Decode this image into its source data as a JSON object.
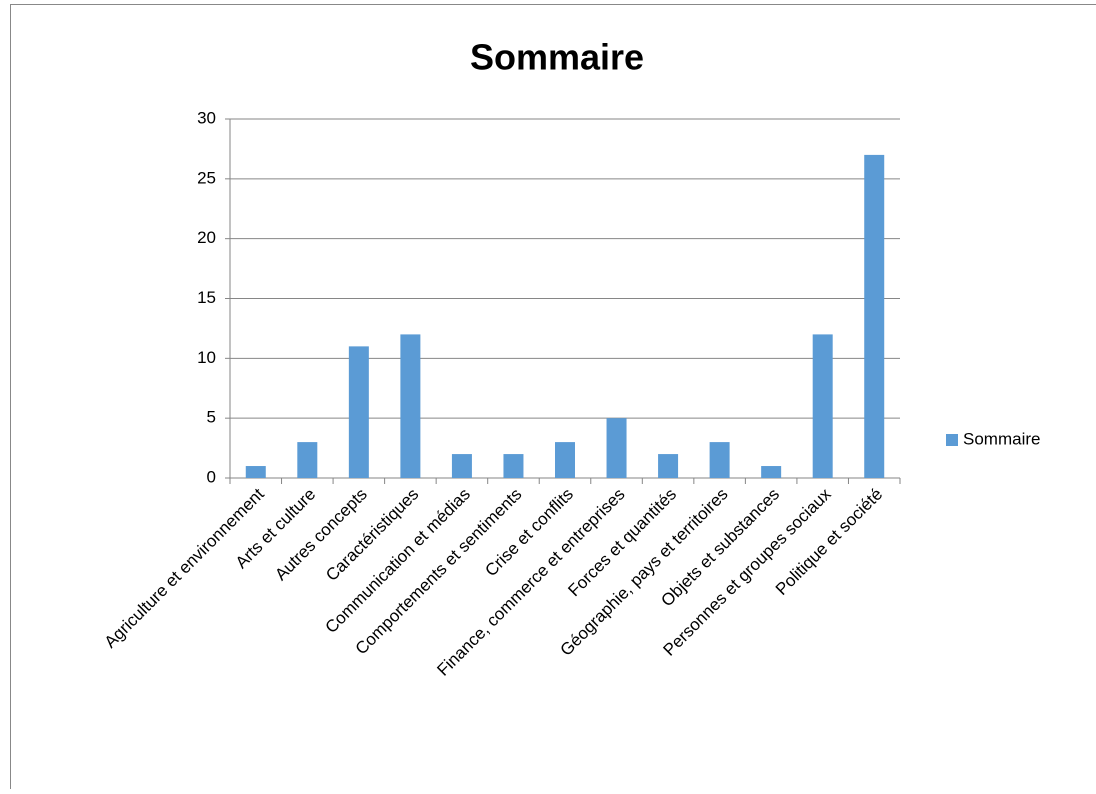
{
  "chart_data": {
    "type": "bar",
    "title": "Sommaire",
    "categories": [
      "Agriculture et environnement",
      "Arts et culture",
      "Autres concepts",
      "Caractéristiques",
      "Communication et médias",
      "Comportements et sentiments",
      "Crise et conflits",
      "Finance, commerce et entreprises",
      "Forces et quantités",
      "Géographie, pays et territoires",
      "Objets et substances",
      "Personnes et groupes sociaux",
      "Politique et société"
    ],
    "series": [
      {
        "name": "Sommaire",
        "color": "#5b9bd5",
        "values": [
          1,
          3,
          11,
          12,
          2,
          2,
          3,
          5,
          2,
          3,
          1,
          12,
          27
        ]
      }
    ],
    "ylim": [
      0,
      30
    ],
    "yticks": [
      0,
      5,
      10,
      15,
      20,
      25,
      30
    ],
    "grid": true,
    "legend": "right"
  }
}
